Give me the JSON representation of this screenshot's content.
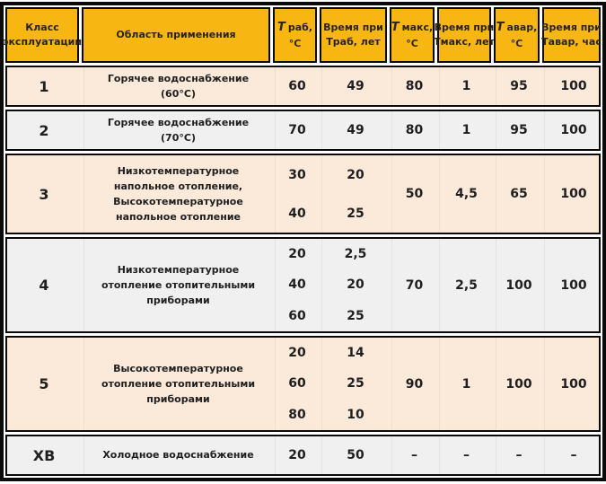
{
  "colors": {
    "header_bg": "#f8b612",
    "row_peach": "#fbe9d9",
    "row_gray": "#f0f0f0",
    "border": "#0a0a0a",
    "text": "#1f1f1f"
  },
  "header": {
    "columns": [
      {
        "t": "",
        "line1": "Класс",
        "line2": "эксплуатации"
      },
      {
        "t": "",
        "line1": "Область применения",
        "line2": ""
      },
      {
        "t": "T",
        "line1": "раб,",
        "line2": "°С"
      },
      {
        "t": "",
        "line1": "Время при",
        "line2": "Траб, лет"
      },
      {
        "t": "T",
        "line1": "макс,",
        "line2": "°С"
      },
      {
        "t": "",
        "line1": "Время при",
        "line2": "Тмакс, лет"
      },
      {
        "t": "T",
        "line1": "авар,",
        "line2": "°С"
      },
      {
        "t": "",
        "line1": "Время при",
        "line2": "Тавар, час"
      }
    ]
  },
  "rows": [
    {
      "class": "1",
      "application": "Горячее водоснабжение (60°С)",
      "t_rab": [
        "60"
      ],
      "time_rab": [
        "49"
      ],
      "t_max": [
        "80"
      ],
      "time_max": [
        "1"
      ],
      "t_avar": [
        "95"
      ],
      "time_avar": [
        "100"
      ],
      "shade": "peach"
    },
    {
      "class": "2",
      "application": "Горячее водоснабжение (70°С)",
      "t_rab": [
        "70"
      ],
      "time_rab": [
        "49"
      ],
      "t_max": [
        "80"
      ],
      "time_max": [
        "1"
      ],
      "t_avar": [
        "95"
      ],
      "time_avar": [
        "100"
      ],
      "shade": "gray"
    },
    {
      "class": "3",
      "application": "Низкотемпературное напольное отопление, Высокотемпературное напольное отопление",
      "t_rab": [
        "30",
        "40"
      ],
      "time_rab": [
        "20",
        "25"
      ],
      "t_max": [
        "50"
      ],
      "time_max": [
        "4,5"
      ],
      "t_avar": [
        "65"
      ],
      "time_avar": [
        "100"
      ],
      "shade": "peach"
    },
    {
      "class": "4",
      "application": "Низкотемпературное отопление отопительными приборами",
      "t_rab": [
        "20",
        "40",
        "60"
      ],
      "time_rab": [
        "2,5",
        "20",
        "25"
      ],
      "t_max": [
        "70"
      ],
      "time_max": [
        "2,5"
      ],
      "t_avar": [
        "100"
      ],
      "time_avar": [
        "100"
      ],
      "shade": "gray"
    },
    {
      "class": "5",
      "application": "Высокотемпературное отопление отопительными приборами",
      "t_rab": [
        "20",
        "60",
        "80"
      ],
      "time_rab": [
        "14",
        "25",
        "10"
      ],
      "t_max": [
        "90"
      ],
      "time_max": [
        "1"
      ],
      "t_avar": [
        "100"
      ],
      "time_avar": [
        "100"
      ],
      "shade": "peach"
    },
    {
      "class": "ХВ",
      "application": "Холодное водоснабжение",
      "t_rab": [
        "20"
      ],
      "time_rab": [
        "50"
      ],
      "t_max": [
        "–"
      ],
      "time_max": [
        "–"
      ],
      "t_avar": [
        "–"
      ],
      "time_avar": [
        "–"
      ],
      "shade": "gray"
    }
  ]
}
